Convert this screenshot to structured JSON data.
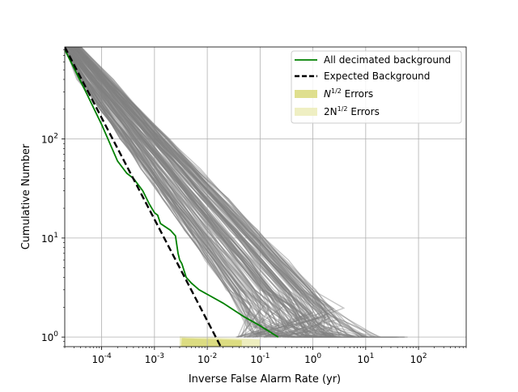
{
  "chart_data": {
    "type": "line",
    "title": "",
    "xlabel": "Inverse False Alarm Rate (yr)",
    "ylabel": "Cumulative Number",
    "xscale": "log",
    "yscale": "log",
    "xlim": [
      2e-05,
      800
    ],
    "ylim": [
      0.8,
      850
    ],
    "grid": true,
    "legend_position": "top-right",
    "x_tick_labels": [
      "10^-4",
      "10^-3",
      "10^-2",
      "10^-1",
      "10^0",
      "10^1",
      "10^2"
    ],
    "x_tick_values": [
      0.0001,
      0.001,
      0.01,
      0.1,
      1,
      10,
      100
    ],
    "y_tick_labels": [
      "10^0",
      "10^1",
      "10^2"
    ],
    "y_tick_values": [
      1,
      10,
      100
    ],
    "colors": {
      "decimated": "#008000",
      "expected": "#000000",
      "background_trials": "#808080",
      "n_half_band": "#d9d97a",
      "two_n_half_band": "#ececb8"
    },
    "series": [
      {
        "name": "All decimated background",
        "style": "solid",
        "x": [
          2e-05,
          5e-05,
          0.0001,
          0.0002,
          0.0003,
          0.0004,
          0.0006,
          0.0008,
          0.001,
          0.00115,
          0.0013,
          0.002,
          0.0025,
          0.0028,
          0.003,
          0.0033,
          0.004,
          0.005,
          0.007,
          0.01,
          0.02,
          0.05,
          0.1,
          0.22
        ],
        "y": [
          800,
          300,
          140,
          60,
          45,
          40,
          30,
          22,
          18,
          17,
          14,
          12,
          10.5,
          7,
          6,
          5.5,
          4,
          3.5,
          3,
          2.7,
          2.2,
          1.6,
          1.3,
          1.0
        ]
      },
      {
        "name": "Expected Background",
        "style": "dashed",
        "x": [
          2e-05,
          0.018
        ],
        "y": [
          850,
          0.8
        ]
      },
      {
        "name": "N^{1/2} Errors",
        "style": "band"
      },
      {
        "name": "2N^{1/2} Errors",
        "style": "band"
      }
    ],
    "background_trials": {
      "count": 150,
      "tail_extent_x": [
        0.1,
        270
      ],
      "tail_y_range": [
        1.0,
        2.5
      ]
    }
  },
  "legend": {
    "entries": [
      {
        "label": "All decimated background"
      },
      {
        "label": "Expected Background"
      },
      {
        "label_base": "N",
        "label_sup": "1/2",
        "label_rest": " Errors"
      },
      {
        "label_base": "2N",
        "label_sup": "1/2",
        "label_rest": " Errors"
      }
    ]
  }
}
